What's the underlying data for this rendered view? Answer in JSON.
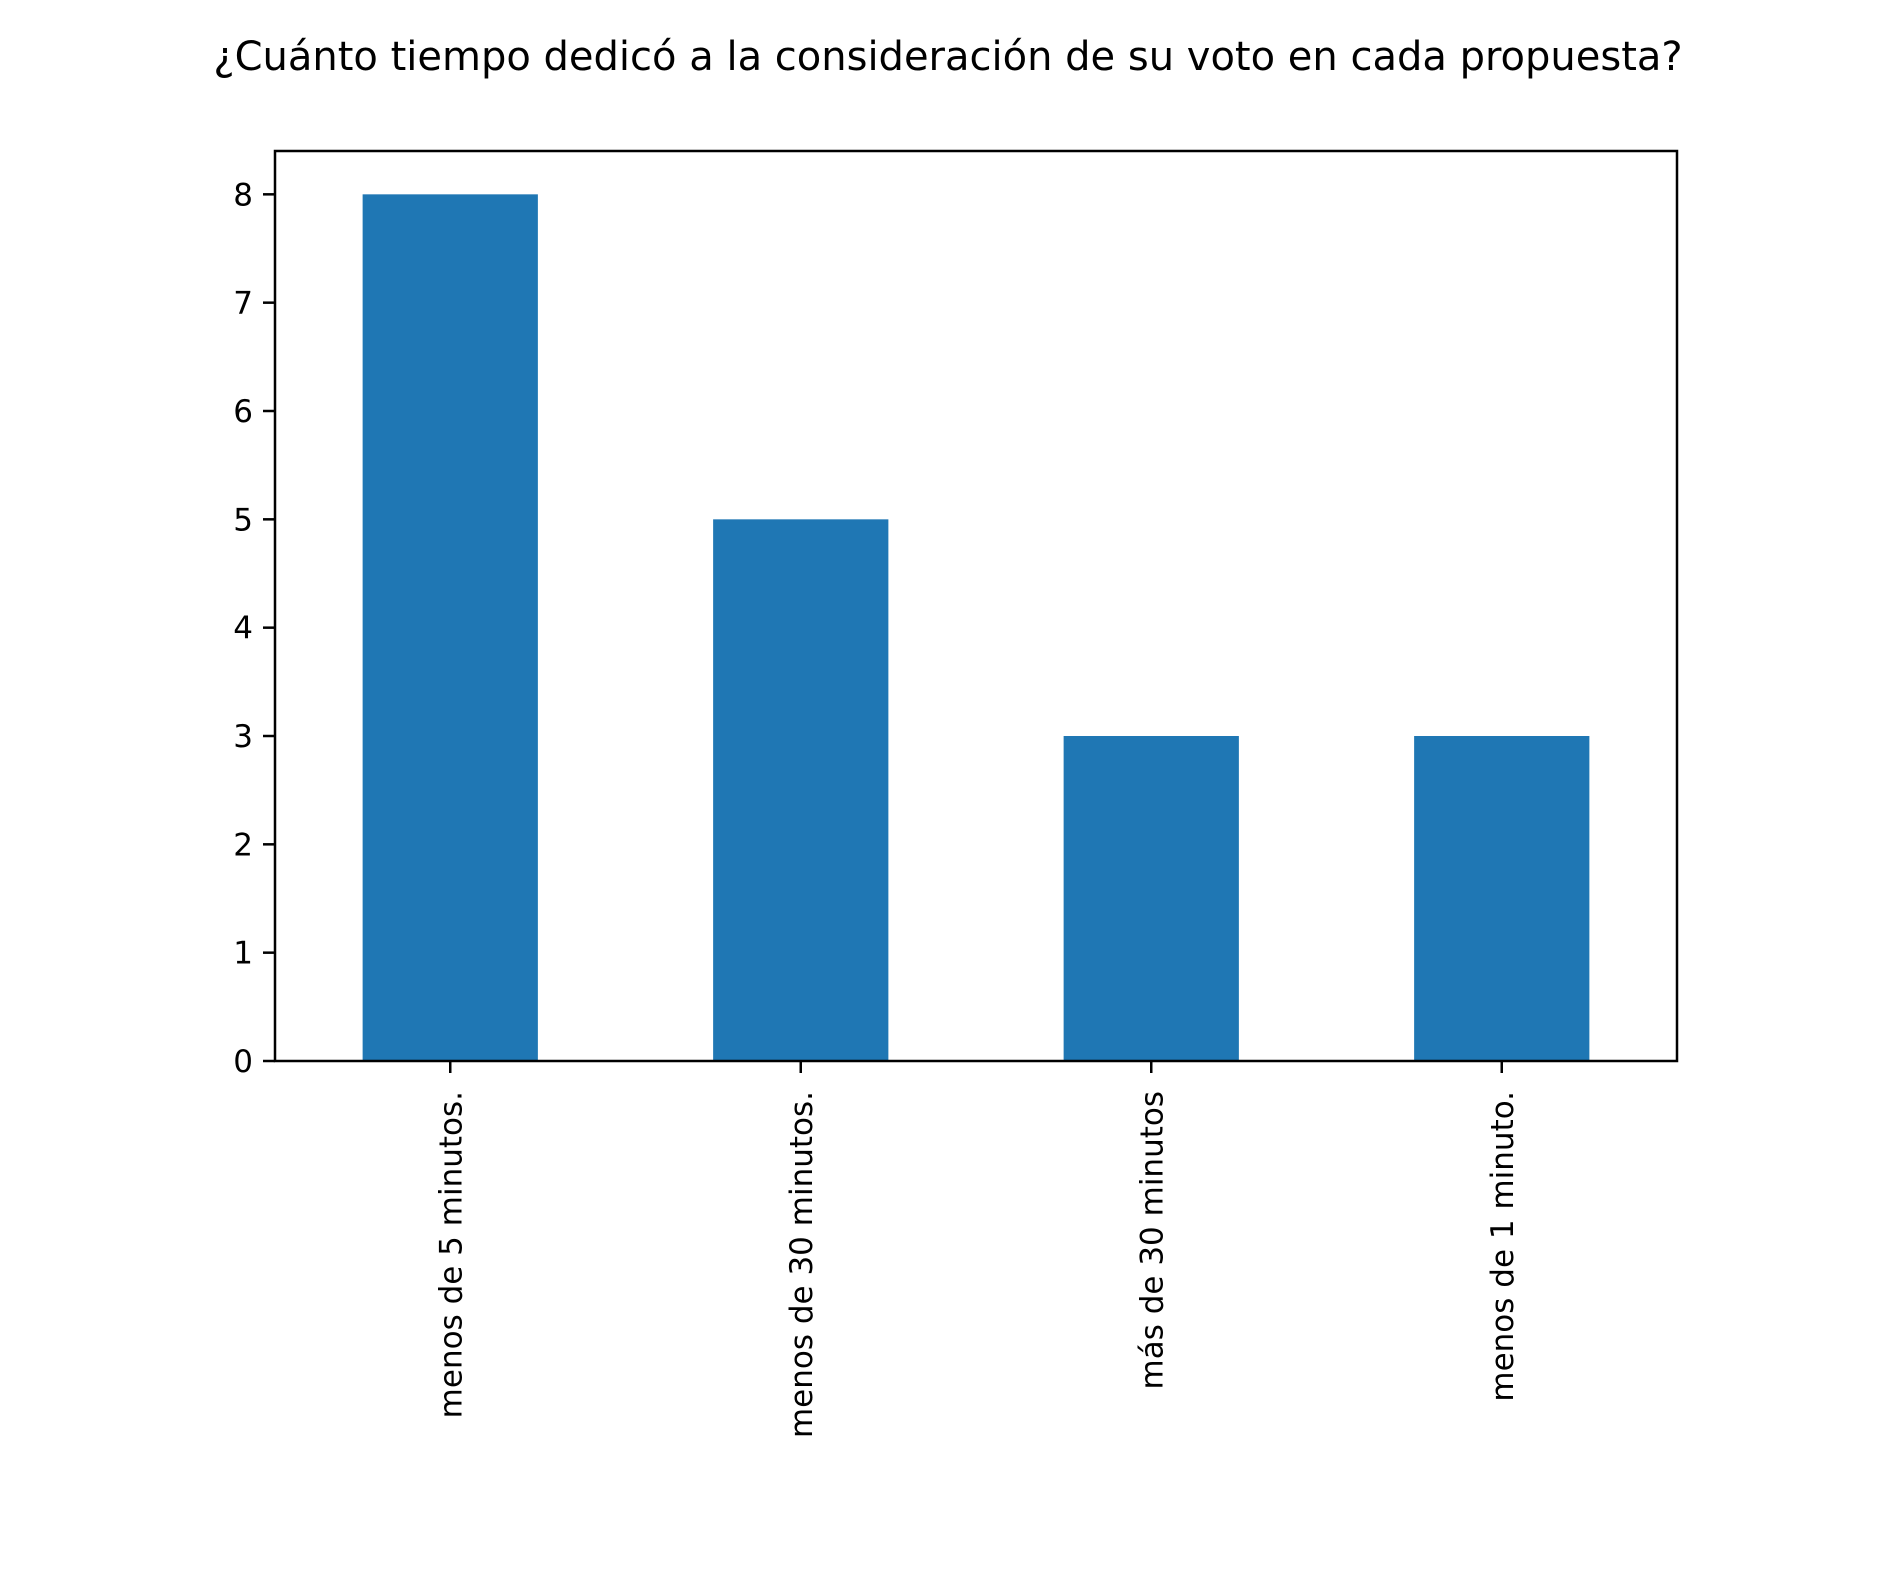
{
  "chart_data": {
    "type": "bar",
    "title": "¿Cuánto tiempo dedicó a la consideración de su voto en cada propuesta?",
    "xlabel": "",
    "ylabel": "",
    "categories": [
      "menos de 5 minutos.",
      "menos de 30 minutos.",
      "más de 30 minutos",
      "menos de 1 minuto."
    ],
    "values": [
      8,
      5,
      3,
      3
    ],
    "ylim": [
      0,
      8.4
    ],
    "yticks": [
      "0",
      "1",
      "2",
      "3",
      "4",
      "5",
      "6",
      "7",
      "8"
    ],
    "bar_color": "#1f77b4",
    "grid": false,
    "legend": "none"
  }
}
